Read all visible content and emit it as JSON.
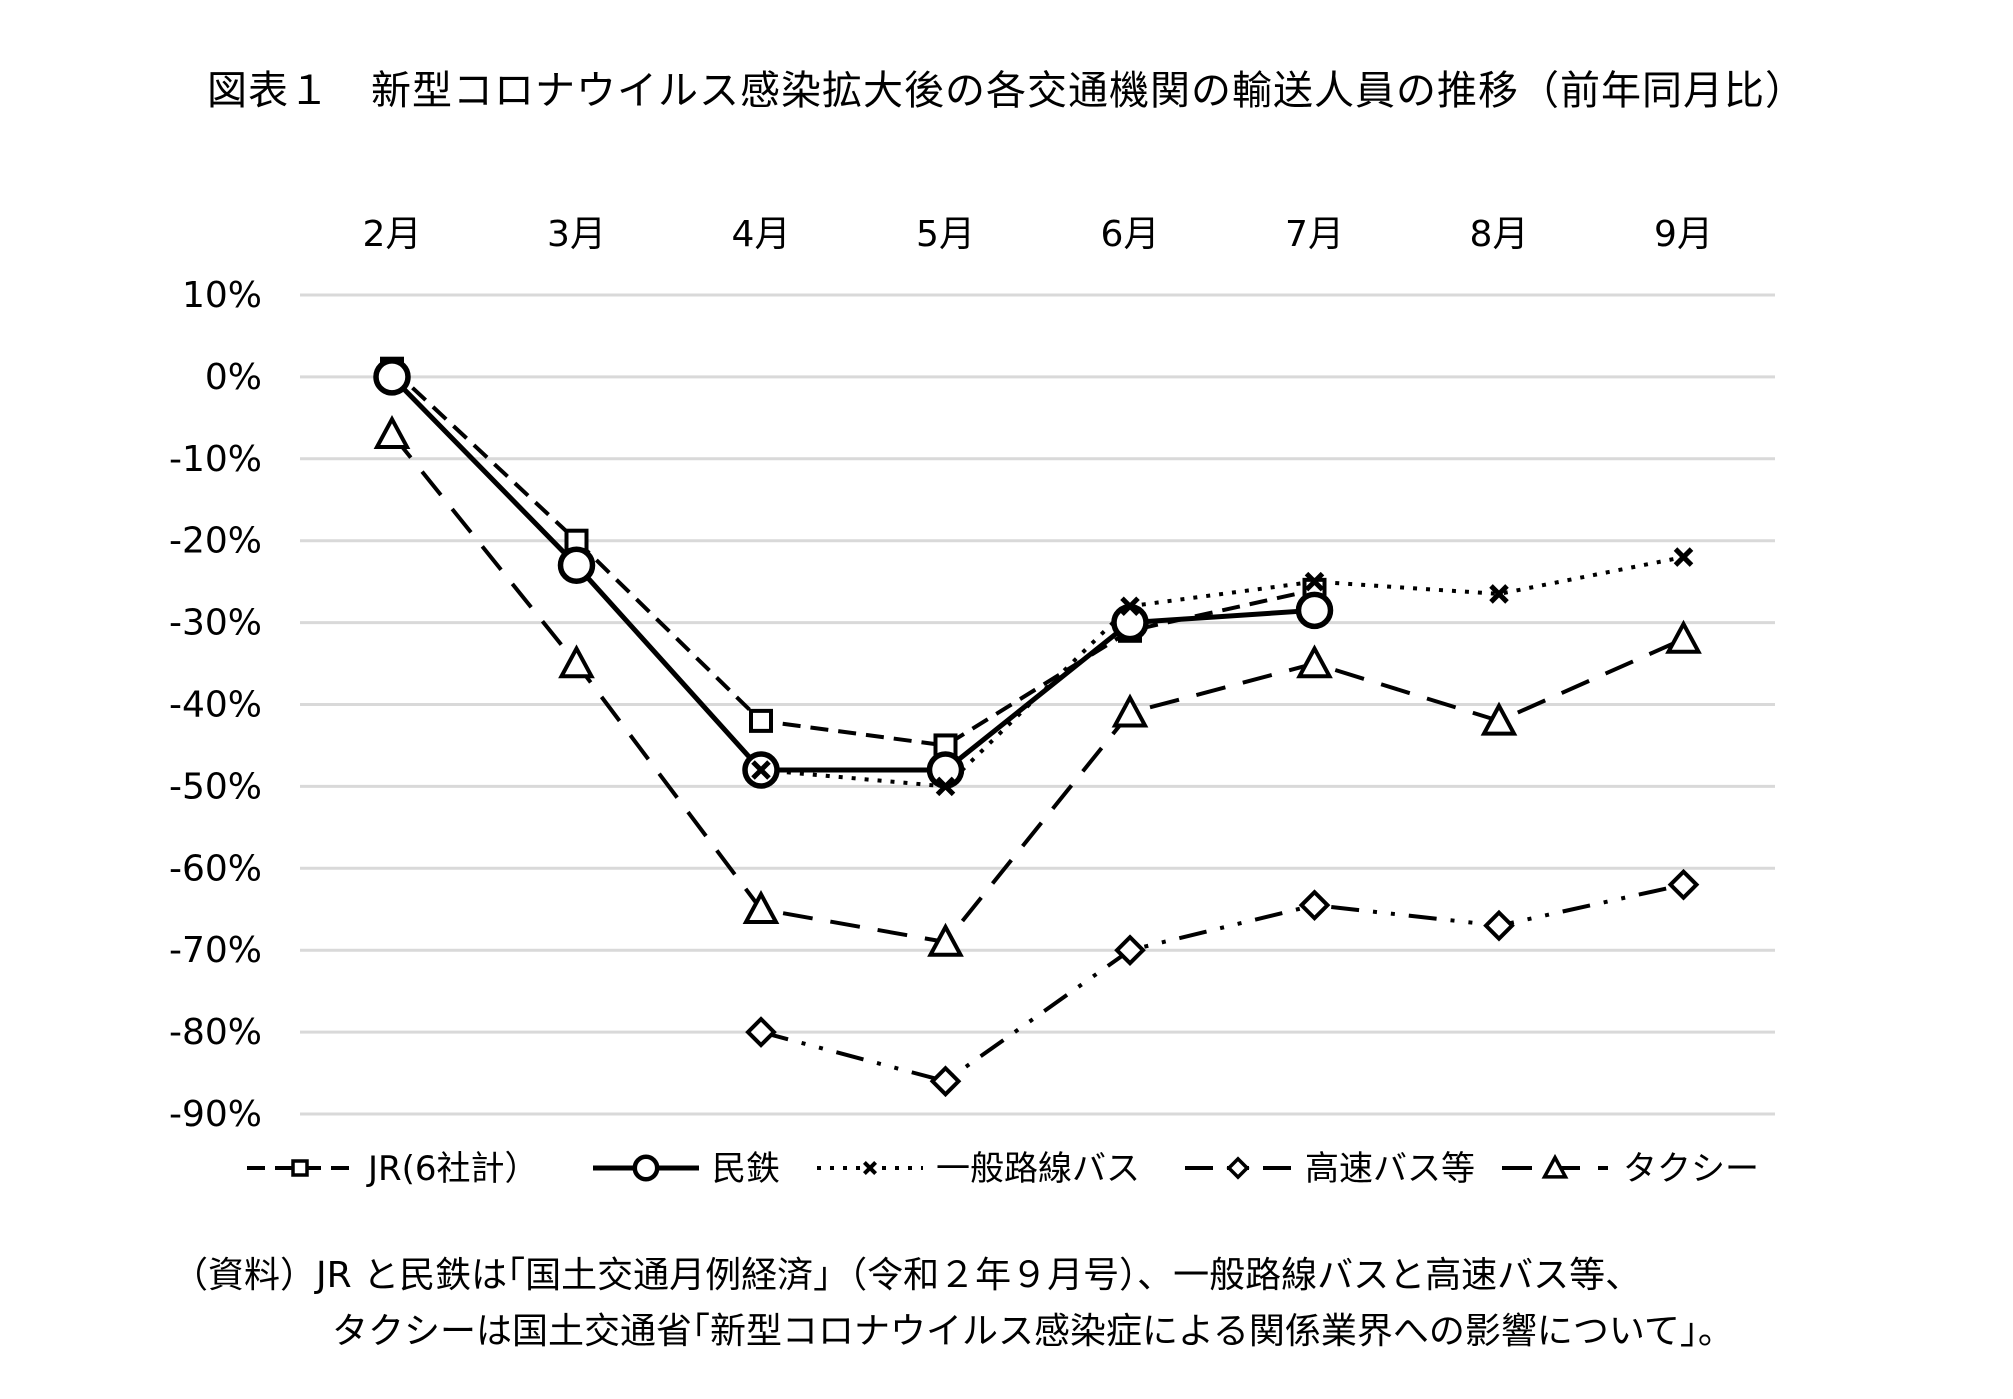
{
  "title": "図表１　新型コロナウイルス感染拡大後の各交通機関の輸送人員の推移（前年同月比）",
  "chart_data": {
    "type": "line",
    "title": "図表１　新型コロナウイルス感染拡大後の各交通機関の輸送人員の推移（前年同月比）",
    "xlabel": "",
    "ylabel": "",
    "categories": [
      "2月",
      "3月",
      "4月",
      "5月",
      "6月",
      "7月",
      "8月",
      "9月"
    ],
    "ylim": [
      -90,
      10
    ],
    "yticks": [
      10,
      0,
      -10,
      -20,
      -30,
      -40,
      -50,
      -60,
      -70,
      -80,
      -90
    ],
    "ytick_labels": [
      "10%",
      "0%",
      "-10%",
      "-20%",
      "-30%",
      "-40%",
      "-50%",
      "-60%",
      "-70%",
      "-80%",
      "-90%"
    ],
    "x_axis_position": "top",
    "grid": true,
    "legend_position": "bottom",
    "series": [
      {
        "name": "JR(6社計）",
        "values": [
          1,
          -20,
          -42,
          -45,
          -31,
          -26,
          null,
          null
        ],
        "marker": "square",
        "line": "dashed"
      },
      {
        "name": "民鉄",
        "values": [
          0,
          -23,
          -48,
          -48,
          -30,
          -28.5,
          null,
          null
        ],
        "marker": "circle",
        "line": "solid"
      },
      {
        "name": "一般路線バス",
        "values": [
          null,
          null,
          -48,
          -50,
          -28,
          -25,
          -26.5,
          -22
        ],
        "marker": "x",
        "line": "dotted"
      },
      {
        "name": "高速バス等",
        "values": [
          null,
          null,
          -80,
          -86,
          -70,
          -64.5,
          -67,
          -62
        ],
        "marker": "diamond",
        "line": "dashdotdot"
      },
      {
        "name": "タクシー",
        "values": [
          -7,
          -35,
          -65,
          -69,
          -41,
          -35,
          -42,
          -32
        ],
        "marker": "triangle",
        "line": "longdash"
      }
    ]
  },
  "source_note": {
    "line1": "（資料）JR と民鉄は｢国土交通月例経済｣（令和２年９月号）、一般路線バスと高速バス等、",
    "line2": "タクシーは国土交通省｢新型コロナウイルス感染症による関係業界への影響について｣。"
  }
}
